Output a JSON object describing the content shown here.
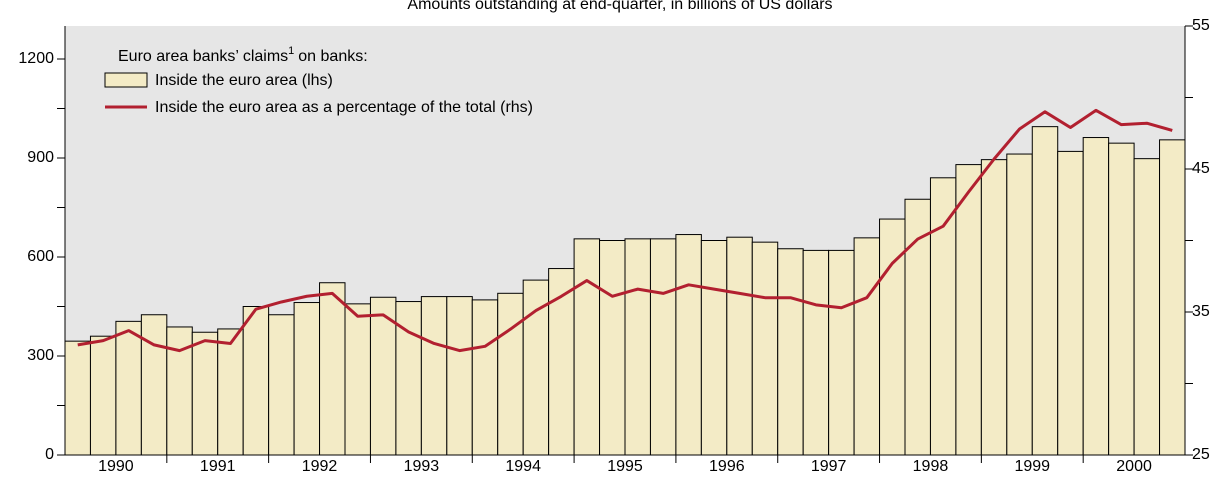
{
  "chart_data": {
    "type": "bar_line",
    "title": "Amounts outstanding at end-quarter, in billions of US dollars",
    "legend_title": "Euro area banks’ claims",
    "legend_footnote": "1",
    "legend_title_end": "on banks:",
    "years": [
      "1990",
      "1991",
      "1992",
      "1993",
      "1994",
      "1995",
      "1996",
      "1997",
      "1998",
      "1999",
      "2000"
    ],
    "periods_per_year": 4,
    "series": [
      {
        "name": "Inside the euro area (lhs)",
        "kind": "bar",
        "color": "#f3ebc6",
        "values": [
          345,
          360,
          405,
          425,
          388,
          372,
          382,
          450,
          425,
          462,
          522,
          458,
          478,
          465,
          480,
          480,
          470,
          490,
          530,
          565,
          655,
          650,
          655,
          655,
          668,
          650,
          660,
          645,
          625,
          620,
          620,
          658,
          715,
          775,
          840,
          880,
          895,
          912,
          995,
          920,
          962,
          945,
          898,
          955
        ]
      },
      {
        "name": "Inside the euro area as a percentage of the total (rhs)",
        "kind": "line",
        "axis": "y2",
        "color": "#b22030",
        "values": [
          32.7,
          33.0,
          33.7,
          32.7,
          32.3,
          33.0,
          32.8,
          35.2,
          35.7,
          36.1,
          36.3,
          34.7,
          34.8,
          33.6,
          32.8,
          32.3,
          32.6,
          33.8,
          35.1,
          36.1,
          37.2,
          36.1,
          36.6,
          36.3,
          36.9,
          36.6,
          36.3,
          36.0,
          36.0,
          35.5,
          35.3,
          36.0,
          38.4,
          40.1,
          41.0,
          43.4,
          45.7,
          47.8,
          49.0,
          47.9,
          49.1,
          48.1,
          48.2,
          47.7
        ]
      }
    ],
    "ylim": [
      0,
      1300
    ],
    "yticks": [
      0,
      300,
      600,
      900,
      1200
    ],
    "yticks_minor": [
      150,
      450,
      750,
      1050
    ],
    "y2lim": [
      25,
      55
    ],
    "y2ticks": [
      25,
      35,
      45,
      55
    ],
    "y2ticks_minor": [
      30,
      40,
      50
    ]
  }
}
